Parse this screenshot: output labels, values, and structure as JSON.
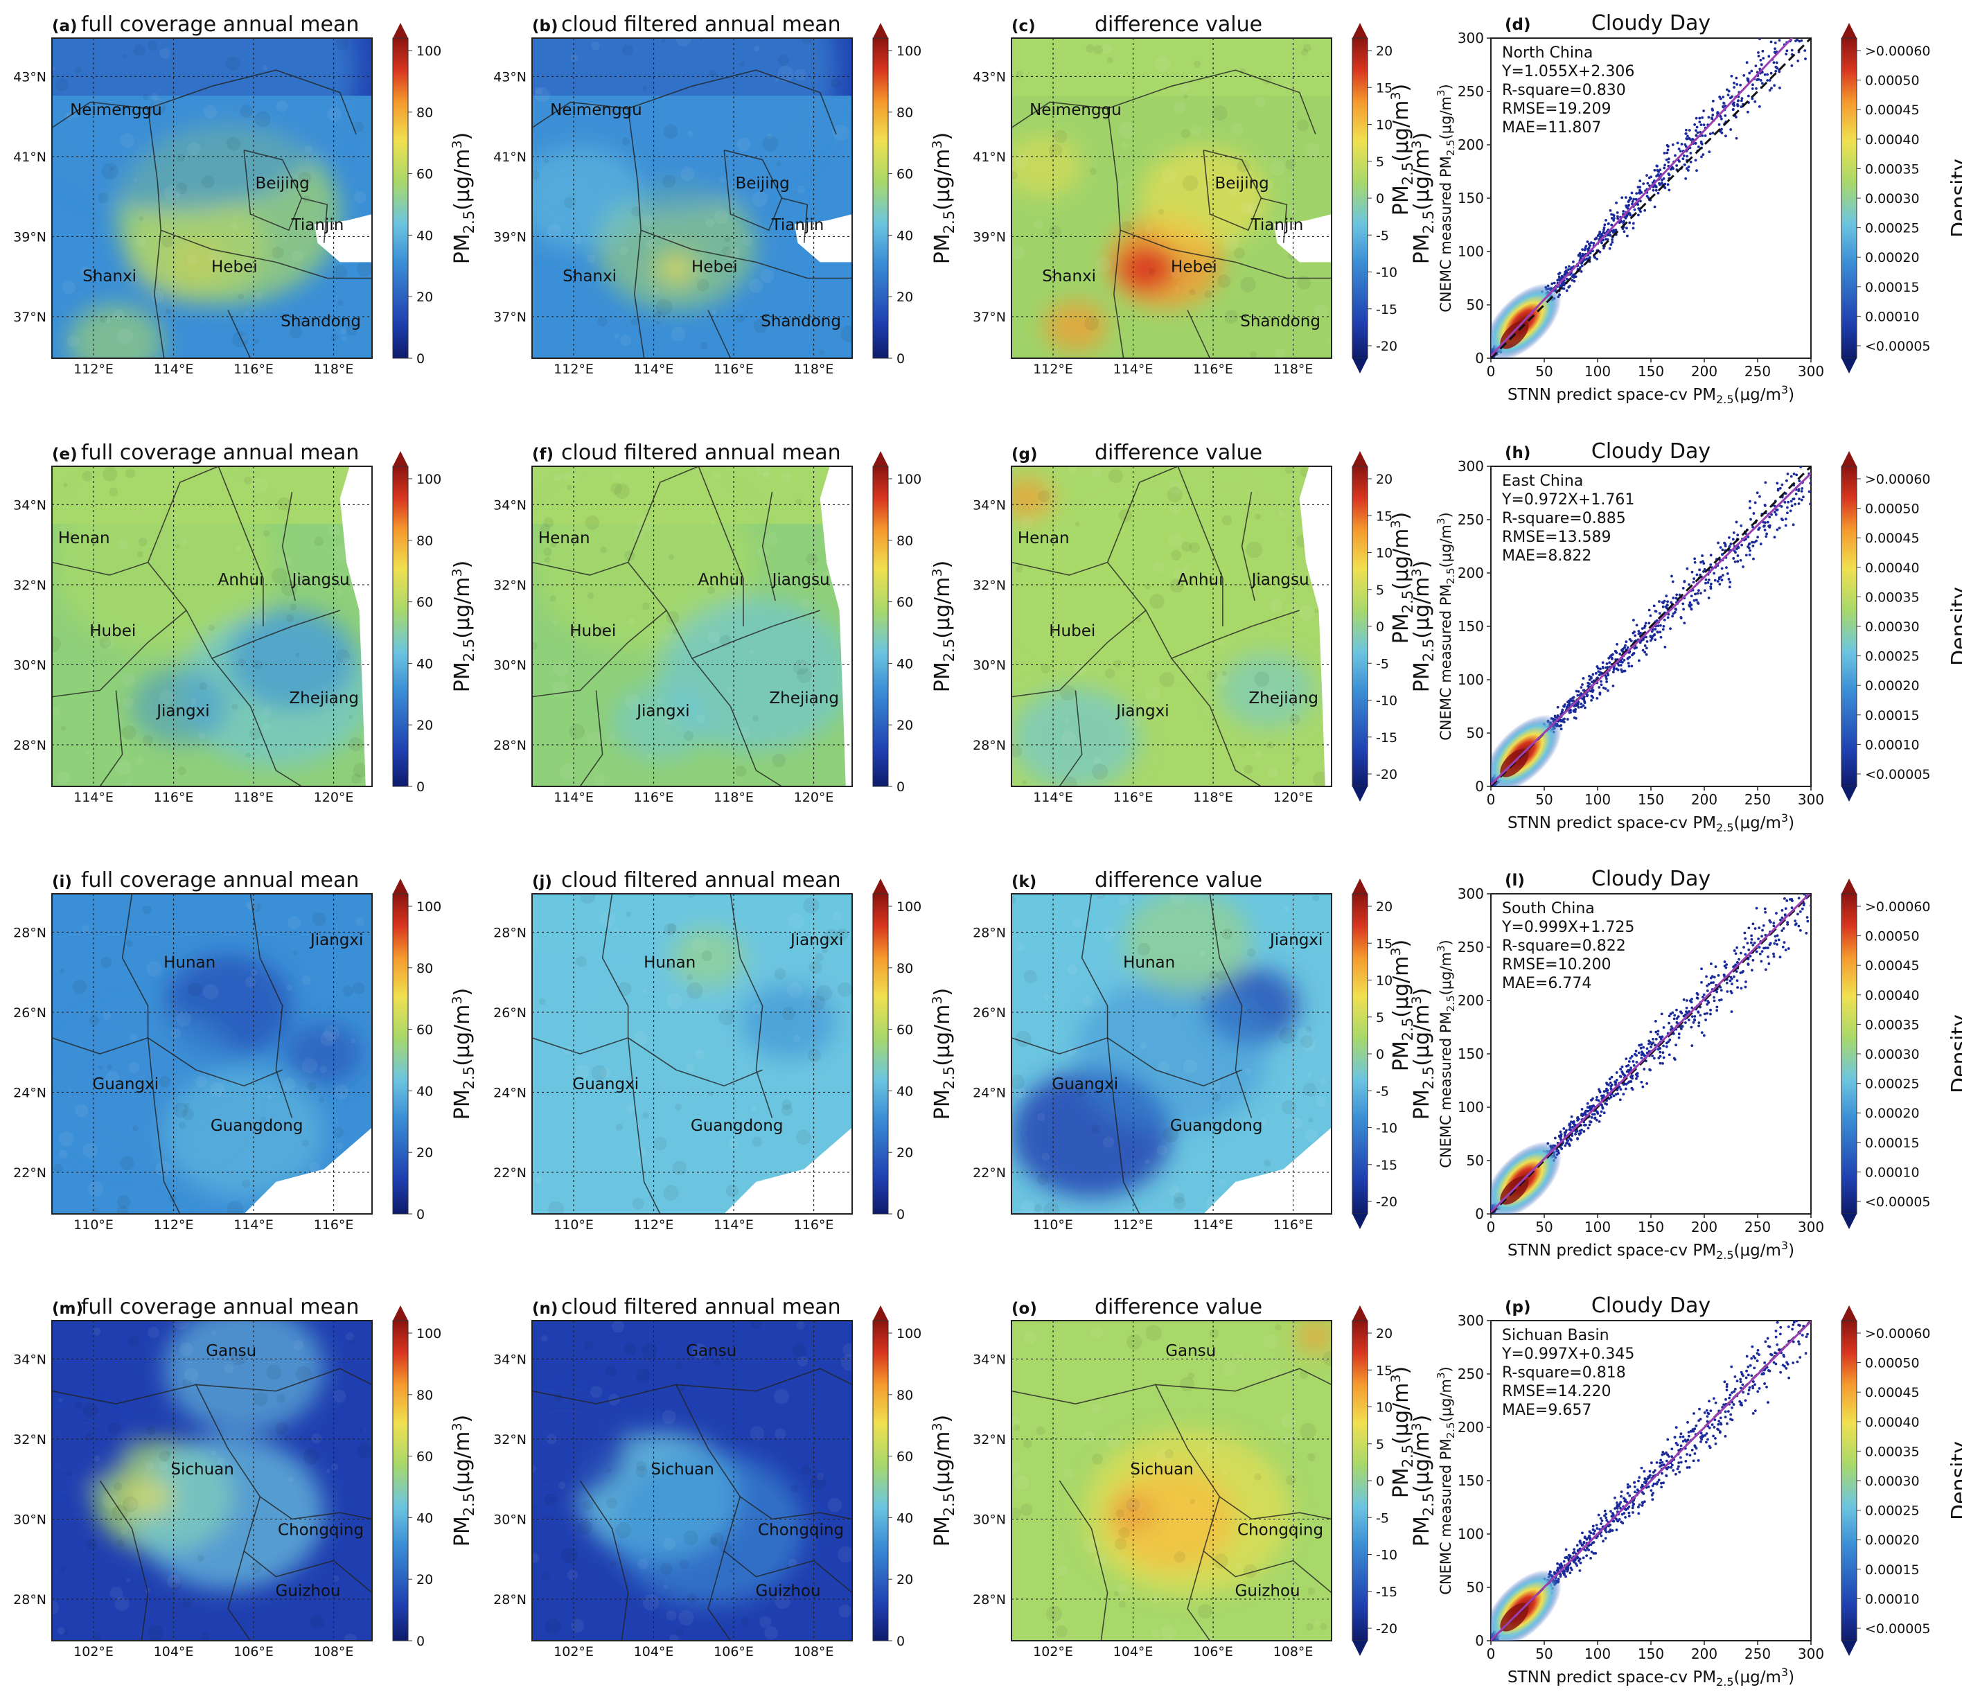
{
  "chart_data": [
    {
      "type": "heatmap",
      "panel": "(a)",
      "title": "full coverage annual mean",
      "kind": "map",
      "variant": "full",
      "region": "north",
      "colorbar": {
        "ticks": [
          "0",
          "20",
          "40",
          "60",
          "80",
          "100"
        ],
        "label": "PM2.5(μg/m3)"
      },
      "lat_ticks": [
        "43°N",
        "41°N",
        "39°N",
        "37°N"
      ],
      "lon_ticks": [
        "112°E",
        "114°E",
        "116°E",
        "118°E"
      ],
      "provinces": [
        "Neimenggu",
        "Beijing",
        "Tianjin",
        "Shanxi",
        "Hebei",
        "Shandong"
      ]
    },
    {
      "type": "heatmap",
      "panel": "(b)",
      "title": "cloud filtered annual mean",
      "kind": "map",
      "variant": "cloud",
      "region": "north",
      "colorbar": {
        "ticks": [
          "0",
          "20",
          "40",
          "60",
          "80",
          "100"
        ],
        "label": "PM2.5(μg/m3)"
      },
      "lat_ticks": [
        "43°N",
        "41°N",
        "39°N",
        "37°N"
      ],
      "lon_ticks": [
        "112°E",
        "114°E",
        "116°E",
        "118°E"
      ],
      "provinces": [
        "Neimenggu",
        "Beijing",
        "Tianjin",
        "Shanxi",
        "Hebei",
        "Shandong"
      ]
    },
    {
      "type": "heatmap",
      "panel": "(c)",
      "title": "difference value",
      "kind": "map",
      "variant": "diff",
      "region": "north",
      "colorbar": {
        "ticks": [
          "-20",
          "-15",
          "-10",
          "-5",
          "0",
          "5",
          "10",
          "15",
          "20"
        ],
        "label": "PM2.5(μg/m3)"
      },
      "lat_ticks": [
        "43°N",
        "41°N",
        "39°N",
        "37°N"
      ],
      "lon_ticks": [
        "112°E",
        "114°E",
        "116°E",
        "118°E"
      ],
      "provinces": [
        "Neimenggu",
        "Beijing",
        "Tianjin",
        "Shanxi",
        "Hebei",
        "Shandong"
      ]
    },
    {
      "type": "scatter",
      "panel": "(d)",
      "title": "Cloudy Day",
      "kind": "scatter",
      "region_name": "North China",
      "equation": "Y=1.055X+2.306",
      "r_square": "R-square=0.830",
      "rmse": "RMSE=19.209",
      "mae": "MAE=11.807",
      "slope": 1.055,
      "intercept": 2.306,
      "xlabel": "STNN predict space-cv PM2.5(μg/m3)",
      "ylabel": "CNEMC measured PM2.5(μg/m3)",
      "xlim": [
        0,
        300
      ],
      "ylim": [
        0,
        300
      ],
      "ticks": [
        "0",
        "50",
        "100",
        "150",
        "200",
        "250",
        "300"
      ],
      "colorbar": {
        "ticks": [
          "<0.00005",
          "0.00010",
          "0.00015",
          "0.00020",
          "0.00025",
          "0.00030",
          "0.00035",
          "0.00040",
          "0.00045",
          "0.00050",
          ">0.00060"
        ],
        "label": "Density"
      }
    },
    {
      "type": "heatmap",
      "panel": "(e)",
      "title": "full coverage annual mean",
      "kind": "map",
      "variant": "full",
      "region": "east",
      "colorbar": {
        "ticks": [
          "0",
          "20",
          "40",
          "60",
          "80",
          "100"
        ],
        "label": "PM2.5(μg/m3)"
      },
      "lat_ticks": [
        "34°N",
        "32°N",
        "30°N",
        "28°N"
      ],
      "lon_ticks": [
        "114°E",
        "116°E",
        "118°E",
        "120°E"
      ],
      "provinces": [
        "Henan",
        "Anhui",
        "Jiangsu",
        "Hubei",
        "Jiangxi",
        "Zhejiang"
      ]
    },
    {
      "type": "heatmap",
      "panel": "(f)",
      "title": "cloud filtered annual mean",
      "kind": "map",
      "variant": "cloud",
      "region": "east",
      "colorbar": {
        "ticks": [
          "0",
          "20",
          "40",
          "60",
          "80",
          "100"
        ],
        "label": "PM2.5(μg/m3)"
      },
      "lat_ticks": [
        "34°N",
        "32°N",
        "30°N",
        "28°N"
      ],
      "lon_ticks": [
        "114°E",
        "116°E",
        "118°E",
        "120°E"
      ],
      "provinces": [
        "Henan",
        "Anhui",
        "Jiangsu",
        "Hubei",
        "Jiangxi",
        "Zhejiang"
      ]
    },
    {
      "type": "heatmap",
      "panel": "(g)",
      "title": "difference value",
      "kind": "map",
      "variant": "diff",
      "region": "east",
      "colorbar": {
        "ticks": [
          "-20",
          "-15",
          "-10",
          "-5",
          "0",
          "5",
          "10",
          "15",
          "20"
        ],
        "label": "PM2.5(μg/m3)"
      },
      "lat_ticks": [
        "34°N",
        "32°N",
        "30°N",
        "28°N"
      ],
      "lon_ticks": [
        "114°E",
        "116°E",
        "118°E",
        "120°E"
      ],
      "provinces": [
        "Henan",
        "Anhui",
        "Jiangsu",
        "Hubei",
        "Jiangxi",
        "Zhejiang"
      ]
    },
    {
      "type": "scatter",
      "panel": "(h)",
      "title": "Cloudy Day",
      "kind": "scatter",
      "region_name": "East China",
      "equation": "Y=0.972X+1.761",
      "r_square": "R-square=0.885",
      "rmse": "RMSE=13.589",
      "mae": "MAE=8.822",
      "slope": 0.972,
      "intercept": 1.761,
      "xlabel": "STNN predict space-cv PM2.5(μg/m3)",
      "ylabel": "CNEMC measured PM2.5(μg/m3)",
      "xlim": [
        0,
        300
      ],
      "ylim": [
        0,
        300
      ],
      "ticks": [
        "0",
        "50",
        "100",
        "150",
        "200",
        "250",
        "300"
      ],
      "colorbar": {
        "ticks": [
          "<0.00005",
          "0.00010",
          "0.00015",
          "0.00020",
          "0.00025",
          "0.00030",
          "0.00035",
          "0.00040",
          "0.00045",
          "0.00050",
          ">0.00060"
        ],
        "label": "Density"
      }
    },
    {
      "type": "heatmap",
      "panel": "(i)",
      "title": "full coverage annual mean",
      "kind": "map",
      "variant": "full",
      "region": "south",
      "colorbar": {
        "ticks": [
          "0",
          "20",
          "40",
          "60",
          "80",
          "100"
        ],
        "label": "PM2.5(μg/m3)"
      },
      "lat_ticks": [
        "28°N",
        "26°N",
        "24°N",
        "22°N"
      ],
      "lon_ticks": [
        "110°E",
        "112°E",
        "114°E",
        "116°E"
      ],
      "provinces": [
        "Jiangxi",
        "Hunan",
        "Guangxi",
        "Guangdong"
      ]
    },
    {
      "type": "heatmap",
      "panel": "(j)",
      "title": "cloud filtered annual mean",
      "kind": "map",
      "variant": "cloud",
      "region": "south",
      "colorbar": {
        "ticks": [
          "0",
          "20",
          "40",
          "60",
          "80",
          "100"
        ],
        "label": "PM2.5(μg/m3)"
      },
      "lat_ticks": [
        "28°N",
        "26°N",
        "24°N",
        "22°N"
      ],
      "lon_ticks": [
        "110°E",
        "112°E",
        "114°E",
        "116°E"
      ],
      "provinces": [
        "Jiangxi",
        "Hunan",
        "Guangxi",
        "Guangdong"
      ]
    },
    {
      "type": "heatmap",
      "panel": "(k)",
      "title": "difference value",
      "kind": "map",
      "variant": "diff",
      "region": "south",
      "colorbar": {
        "ticks": [
          "-20",
          "-15",
          "-10",
          "-5",
          "0",
          "5",
          "10",
          "15",
          "20"
        ],
        "label": "PM2.5(μg/m3)"
      },
      "lat_ticks": [
        "28°N",
        "26°N",
        "24°N",
        "22°N"
      ],
      "lon_ticks": [
        "110°E",
        "112°E",
        "114°E",
        "116°E"
      ],
      "provinces": [
        "Jiangxi",
        "Hunan",
        "Guangxi",
        "Guangdong"
      ]
    },
    {
      "type": "scatter",
      "panel": "(l)",
      "title": "Cloudy Day",
      "kind": "scatter",
      "region_name": "South China",
      "equation": "Y=0.999X+1.725",
      "r_square": "R-square=0.822",
      "rmse": "RMSE=10.200",
      "mae": "MAE=6.774",
      "slope": 0.999,
      "intercept": 1.725,
      "xlabel": "STNN predict space-cv PM2.5(μg/m3)",
      "ylabel": "CNEMC measured PM2.5(μg/m3)",
      "xlim": [
        0,
        300
      ],
      "ylim": [
        0,
        300
      ],
      "ticks": [
        "0",
        "50",
        "100",
        "150",
        "200",
        "250",
        "300"
      ],
      "colorbar": {
        "ticks": [
          "<0.00005",
          "0.00010",
          "0.00015",
          "0.00020",
          "0.00025",
          "0.00030",
          "0.00035",
          "0.00040",
          "0.00045",
          "0.00050",
          ">0.00060"
        ],
        "label": "Density"
      }
    },
    {
      "type": "heatmap",
      "panel": "(m)",
      "title": "full coverage annual mean",
      "kind": "map",
      "variant": "full",
      "region": "sichuan",
      "colorbar": {
        "ticks": [
          "0",
          "20",
          "40",
          "60",
          "80",
          "100"
        ],
        "label": "PM2.5(μg/m3)"
      },
      "lat_ticks": [
        "34°N",
        "32°N",
        "30°N",
        "28°N"
      ],
      "lon_ticks": [
        "102°E",
        "104°E",
        "106°E",
        "108°E"
      ],
      "provinces": [
        "Gansu",
        "Sichuan",
        "Chongqing",
        "Guizhou"
      ]
    },
    {
      "type": "heatmap",
      "panel": "(n)",
      "title": "cloud filtered annual mean",
      "kind": "map",
      "variant": "cloud",
      "region": "sichuan",
      "colorbar": {
        "ticks": [
          "0",
          "20",
          "40",
          "60",
          "80",
          "100"
        ],
        "label": "PM2.5(μg/m3)"
      },
      "lat_ticks": [
        "34°N",
        "32°N",
        "30°N",
        "28°N"
      ],
      "lon_ticks": [
        "102°E",
        "104°E",
        "106°E",
        "108°E"
      ],
      "provinces": [
        "Gansu",
        "Sichuan",
        "Chongqing",
        "Guizhou"
      ]
    },
    {
      "type": "heatmap",
      "panel": "(o)",
      "title": "difference value",
      "kind": "map",
      "variant": "diff",
      "region": "sichuan",
      "colorbar": {
        "ticks": [
          "-20",
          "-15",
          "-10",
          "-5",
          "0",
          "5",
          "10",
          "15",
          "20"
        ],
        "label": "PM2.5(μg/m3)"
      },
      "lat_ticks": [
        "34°N",
        "32°N",
        "30°N",
        "28°N"
      ],
      "lon_ticks": [
        "102°E",
        "104°E",
        "106°E",
        "108°E"
      ],
      "provinces": [
        "Gansu",
        "Sichuan",
        "Chongqing",
        "Guizhou"
      ]
    },
    {
      "type": "scatter",
      "panel": "(p)",
      "title": "Cloudy Day",
      "kind": "scatter",
      "region_name": "Sichuan Basin",
      "equation": "Y=0.997X+0.345",
      "r_square": "R-square=0.818",
      "rmse": "RMSE=14.220",
      "mae": "MAE=9.657",
      "slope": 0.997,
      "intercept": 0.345,
      "xlabel": "STNN predict space-cv PM2.5(μg/m3)",
      "ylabel": "CNEMC measured PM2.5(μg/m3)",
      "xlim": [
        0,
        300
      ],
      "ylim": [
        0,
        300
      ],
      "ticks": [
        "0",
        "50",
        "100",
        "150",
        "200",
        "250",
        "300"
      ],
      "colorbar": {
        "ticks": [
          "<0.00005",
          "0.00010",
          "0.00015",
          "0.00020",
          "0.00025",
          "0.00030",
          "0.00035",
          "0.00040",
          "0.00045",
          "0.00050",
          ">0.00060"
        ],
        "label": "Density"
      }
    }
  ]
}
